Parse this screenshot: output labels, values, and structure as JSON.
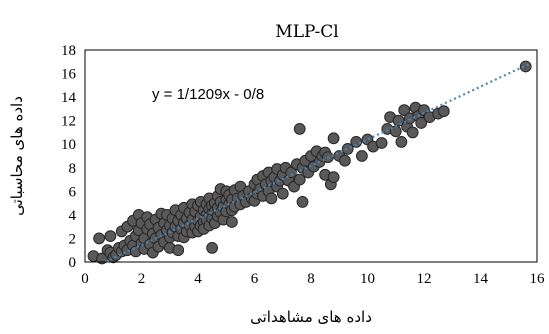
{
  "chart_data": {
    "type": "scatter",
    "title": "MLP-Cl",
    "xlabel": "داده های مشاهداتی",
    "ylabel": "داده های محاسباتی",
    "xlim": [
      0,
      16
    ],
    "ylim": [
      0,
      18
    ],
    "xticks": [
      0,
      2,
      4,
      6,
      8,
      10,
      12,
      14,
      16
    ],
    "yticks": [
      0,
      2,
      4,
      6,
      8,
      10,
      12,
      14,
      16,
      18
    ],
    "grid": false,
    "trendline": {
      "equation": "y = 1/1209x - 0/8",
      "slope": 1.1209,
      "intercept": -0.8,
      "x_range": [
        0.72,
        15.7
      ]
    },
    "series": [
      {
        "points": [
          [
            0.3,
            0.5
          ],
          [
            0.5,
            2.0
          ],
          [
            0.6,
            0.3
          ],
          [
            0.8,
            1.0
          ],
          [
            0.9,
            0.8
          ],
          [
            0.9,
            2.2
          ],
          [
            1.0,
            0.4
          ],
          [
            1.1,
            0.6
          ],
          [
            1.2,
            1.2
          ],
          [
            1.3,
            0.9
          ],
          [
            1.3,
            2.6
          ],
          [
            1.4,
            1.4
          ],
          [
            1.5,
            1.0
          ],
          [
            1.5,
            3.0
          ],
          [
            1.6,
            1.8
          ],
          [
            1.7,
            1.4
          ],
          [
            1.7,
            3.5
          ],
          [
            1.8,
            2.2
          ],
          [
            1.8,
            0.9
          ],
          [
            1.9,
            4.0
          ],
          [
            1.9,
            2.7
          ],
          [
            2.0,
            1.6
          ],
          [
            2.0,
            3.3
          ],
          [
            2.1,
            2.0
          ],
          [
            2.1,
            1.1
          ],
          [
            2.2,
            2.8
          ],
          [
            2.2,
            3.8
          ],
          [
            2.3,
            1.5
          ],
          [
            2.3,
            3.2
          ],
          [
            2.4,
            2.4
          ],
          [
            2.4,
            0.8
          ],
          [
            2.5,
            3.6
          ],
          [
            2.5,
            2.0
          ],
          [
            2.6,
            1.3
          ],
          [
            2.6,
            2.9
          ],
          [
            2.7,
            4.1
          ],
          [
            2.7,
            2.3
          ],
          [
            2.8,
            3.3
          ],
          [
            2.8,
            1.7
          ],
          [
            2.9,
            2.7
          ],
          [
            2.9,
            4.0
          ],
          [
            3.0,
            2.1
          ],
          [
            3.0,
            3.1
          ],
          [
            3.0,
            1.2
          ],
          [
            3.1,
            3.7
          ],
          [
            3.1,
            2.5
          ],
          [
            3.2,
            3.0
          ],
          [
            3.2,
            4.4
          ],
          [
            3.3,
            2.2
          ],
          [
            3.3,
            3.5
          ],
          [
            3.3,
            1.0
          ],
          [
            3.4,
            2.8
          ],
          [
            3.4,
            4.0
          ],
          [
            3.5,
            3.3
          ],
          [
            3.5,
            2.1
          ],
          [
            3.5,
            4.6
          ],
          [
            3.6,
            3.7
          ],
          [
            3.6,
            2.6
          ],
          [
            3.7,
            3.1
          ],
          [
            3.7,
            4.2
          ],
          [
            3.8,
            2.5
          ],
          [
            3.8,
            3.6
          ],
          [
            3.8,
            4.9
          ],
          [
            3.9,
            3.0
          ],
          [
            3.9,
            4.3
          ],
          [
            4.0,
            3.5
          ],
          [
            4.0,
            2.6
          ],
          [
            4.0,
            4.8
          ],
          [
            4.1,
            3.9
          ],
          [
            4.1,
            3.1
          ],
          [
            4.1,
            5.1
          ],
          [
            4.2,
            4.4
          ],
          [
            4.2,
            3.4
          ],
          [
            4.2,
            2.8
          ],
          [
            4.3,
            4.0
          ],
          [
            4.3,
            4.9
          ],
          [
            4.3,
            3.6
          ],
          [
            4.4,
            4.5
          ],
          [
            4.4,
            3.1
          ],
          [
            4.4,
            5.4
          ],
          [
            4.5,
            4.1
          ],
          [
            4.5,
            3.7
          ],
          [
            4.5,
            4.8
          ],
          [
            4.5,
            1.2
          ],
          [
            4.6,
            5.0
          ],
          [
            4.6,
            4.3
          ],
          [
            4.6,
            3.3
          ],
          [
            4.7,
            4.6
          ],
          [
            4.7,
            5.6
          ],
          [
            4.7,
            3.9
          ],
          [
            4.8,
            5.1
          ],
          [
            4.8,
            4.2
          ],
          [
            4.8,
            6.2
          ],
          [
            4.9,
            4.7
          ],
          [
            4.9,
            3.6
          ],
          [
            5.0,
            5.3
          ],
          [
            5.0,
            4.3
          ],
          [
            5.0,
            6.0
          ],
          [
            5.1,
            4.9
          ],
          [
            5.1,
            5.7
          ],
          [
            5.2,
            4.4
          ],
          [
            5.2,
            5.3
          ],
          [
            5.2,
            3.4
          ],
          [
            5.3,
            6.1
          ],
          [
            5.3,
            4.7
          ],
          [
            5.4,
            5.4
          ],
          [
            5.5,
            4.9
          ],
          [
            5.5,
            6.4
          ],
          [
            5.6,
            5.6
          ],
          [
            5.7,
            5.1
          ],
          [
            5.8,
            6.0
          ],
          [
            5.9,
            5.4
          ],
          [
            6.0,
            6.6
          ],
          [
            6.0,
            5.2
          ],
          [
            6.1,
            5.8
          ],
          [
            6.1,
            7.0
          ],
          [
            6.2,
            6.2
          ],
          [
            6.3,
            5.6
          ],
          [
            6.3,
            7.3
          ],
          [
            6.4,
            6.6
          ],
          [
            6.5,
            6.0
          ],
          [
            6.5,
            7.6
          ],
          [
            6.6,
            6.9
          ],
          [
            6.6,
            5.4
          ],
          [
            6.7,
            7.2
          ],
          [
            6.8,
            6.4
          ],
          [
            6.8,
            7.9
          ],
          [
            6.9,
            6.9
          ],
          [
            7.0,
            7.4
          ],
          [
            7.0,
            5.8
          ],
          [
            7.1,
            8.0
          ],
          [
            7.2,
            6.9
          ],
          [
            7.3,
            7.6
          ],
          [
            7.4,
            6.4
          ],
          [
            7.5,
            8.3
          ],
          [
            7.6,
            7.0
          ],
          [
            7.6,
            11.3
          ],
          [
            7.7,
            8.0
          ],
          [
            7.7,
            5.1
          ],
          [
            7.8,
            8.6
          ],
          [
            7.9,
            7.6
          ],
          [
            8.0,
            9.0
          ],
          [
            8.1,
            8.1
          ],
          [
            8.2,
            9.4
          ],
          [
            8.3,
            8.5
          ],
          [
            8.4,
            9.0
          ],
          [
            8.5,
            7.4
          ],
          [
            8.5,
            9.3
          ],
          [
            8.6,
            8.9
          ],
          [
            8.7,
            6.6
          ],
          [
            8.8,
            7.2
          ],
          [
            8.8,
            10.5
          ],
          [
            9.0,
            9.0
          ],
          [
            9.2,
            8.6
          ],
          [
            9.3,
            9.6
          ],
          [
            9.6,
            10.2
          ],
          [
            9.8,
            9.0
          ],
          [
            10.0,
            10.4
          ],
          [
            10.2,
            9.8
          ],
          [
            10.5,
            10.1
          ],
          [
            10.7,
            11.3
          ],
          [
            10.8,
            12.3
          ],
          [
            11.0,
            11.1
          ],
          [
            11.1,
            12.0
          ],
          [
            11.2,
            10.2
          ],
          [
            11.3,
            12.9
          ],
          [
            11.4,
            11.5
          ],
          [
            11.5,
            12.2
          ],
          [
            11.6,
            11.0
          ],
          [
            11.7,
            13.1
          ],
          [
            11.8,
            12.4
          ],
          [
            11.9,
            11.8
          ],
          [
            12.0,
            12.9
          ],
          [
            12.2,
            12.3
          ],
          [
            12.5,
            12.6
          ],
          [
            12.7,
            12.8
          ],
          [
            15.6,
            16.6
          ]
        ]
      }
    ]
  }
}
